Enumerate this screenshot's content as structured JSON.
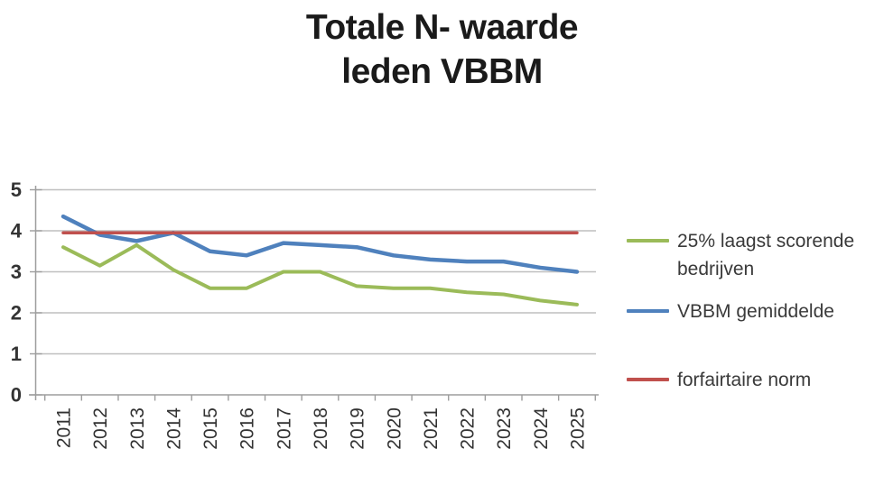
{
  "title": {
    "line1": "Totale N- waarde",
    "line2": "leden VBBM"
  },
  "chart_data": {
    "type": "line",
    "title": "Totale N- waarde leden VBBM",
    "categories": [
      "2011",
      "2012",
      "2013",
      "2014",
      "2015",
      "2016",
      "2017",
      "2018",
      "2019",
      "2020",
      "2021",
      "2022",
      "2023",
      "2024",
      "2025"
    ],
    "series": [
      {
        "name": "25% laagst scorende bedrijven",
        "color": "#9BBB59",
        "values": [
          3.6,
          3.15,
          3.65,
          3.05,
          2.6,
          2.6,
          3.0,
          3.0,
          2.65,
          2.6,
          2.6,
          2.5,
          2.45,
          2.3,
          2.2
        ]
      },
      {
        "name": "VBBM gemiddelde",
        "color": "#4F81BD",
        "values": [
          4.35,
          3.9,
          3.75,
          3.95,
          3.5,
          3.4,
          3.7,
          3.65,
          3.6,
          3.4,
          3.3,
          3.25,
          3.25,
          3.1,
          3.0
        ]
      },
      {
        "name": "forfairtaire norm",
        "color": "#C0504D",
        "values": [
          3.95,
          3.95,
          3.95,
          3.95,
          3.95,
          3.95,
          3.95,
          3.95,
          3.95,
          3.95,
          3.95,
          3.95,
          3.95,
          3.95,
          3.95
        ]
      }
    ],
    "ylim": [
      0,
      5
    ],
    "yticks": [
      "0",
      "1",
      "2",
      "3",
      "4",
      "5"
    ],
    "xlabel": "",
    "ylabel": "",
    "grid": "horizontal",
    "legend_position": "right",
    "x_tick_rotation": -90
  },
  "legend": {
    "items": [
      {
        "label": "25% laagst scorende bedrijven",
        "color": "#9BBB59"
      },
      {
        "label": "VBBM gemiddelde",
        "color": "#4F81BD"
      },
      {
        "label": "forfairtaire norm",
        "color": "#C0504D"
      }
    ]
  },
  "colors": {
    "grid": "#BFBFBF",
    "axis": "#9D9D9D",
    "tick_text": "#333333",
    "legend_text": "#3A3A3A",
    "title_text": "#1A1A1A"
  }
}
